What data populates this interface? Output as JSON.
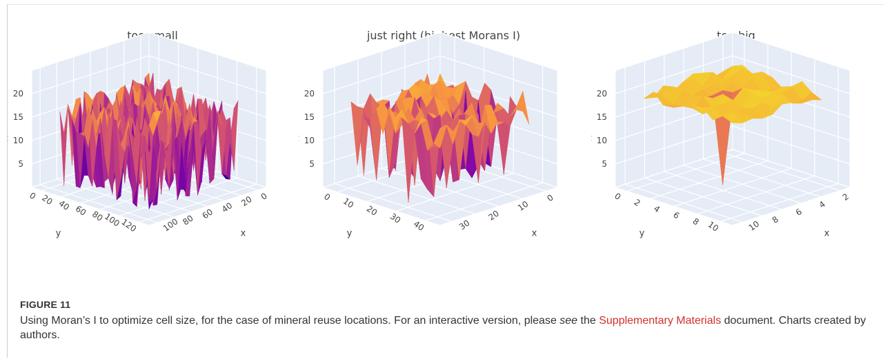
{
  "figure": {
    "label": "FIGURE 11",
    "caption_part1": "Using Moran’s I to optimize cell size, for the case of mineral reuse locations. For an interactive version, please ",
    "caption_see": "see",
    "caption_part2": " the ",
    "caption_link": "Supplementary Materials",
    "caption_part3": " document. Charts created by authors."
  },
  "colors": {
    "pane": "#e5ecf6",
    "grid": "#ffffff",
    "tick_text": "#444444",
    "title_text": "#444444",
    "link": "#d0302b",
    "surface_low": "#0d0887",
    "surface_mid": "#cc4778",
    "surface_high": "#f0f921"
  },
  "chart_data": [
    {
      "type": "surface3d",
      "title": "too small",
      "colorscale": "plasma",
      "z_axis": {
        "label": "z",
        "ticks": [
          "5",
          "10",
          "15",
          "20"
        ],
        "range": [
          0,
          22
        ]
      },
      "y_axis": {
        "label": "y",
        "ticks": [
          "0",
          "20",
          "40",
          "60",
          "80",
          "100",
          "120"
        ],
        "range": [
          0,
          130
        ]
      },
      "x_axis": {
        "label": "x",
        "ticks": [
          "0",
          "20",
          "40",
          "60",
          "80",
          "100"
        ],
        "range": [
          0,
          110
        ]
      },
      "grid_size": 22,
      "spikiness": 0.9,
      "base_level": 14,
      "top_flat": false
    },
    {
      "type": "surface3d",
      "title": "just right (highest Morans I)",
      "colorscale": "plasma",
      "z_axis": {
        "label": "z",
        "ticks": [
          "5",
          "10",
          "15",
          "20"
        ],
        "range": [
          0,
          22
        ]
      },
      "y_axis": {
        "label": "y",
        "ticks": [
          "0",
          "10",
          "20",
          "30",
          "40"
        ],
        "range": [
          0,
          45
        ]
      },
      "x_axis": {
        "label": "x",
        "ticks": [
          "0",
          "10",
          "20",
          "30"
        ],
        "range": [
          0,
          38
        ]
      },
      "grid_size": 14,
      "spikiness": 0.7,
      "base_level": 16,
      "top_flat": false
    },
    {
      "type": "surface3d",
      "title": "too big",
      "colorscale": "plasma",
      "z_axis": {
        "label": "z",
        "ticks": [
          "5",
          "10",
          "15",
          "20"
        ],
        "range": [
          0,
          22
        ]
      },
      "y_axis": {
        "label": "y",
        "ticks": [
          "0",
          "2",
          "4",
          "6",
          "8",
          "10"
        ],
        "range": [
          0,
          11
        ]
      },
      "x_axis": {
        "label": "x",
        "ticks": [
          "2",
          "4",
          "6",
          "8",
          "10"
        ],
        "range": [
          0,
          11
        ]
      },
      "grid_size": 9,
      "spikiness": 0.25,
      "base_level": 19,
      "top_flat": true
    }
  ]
}
